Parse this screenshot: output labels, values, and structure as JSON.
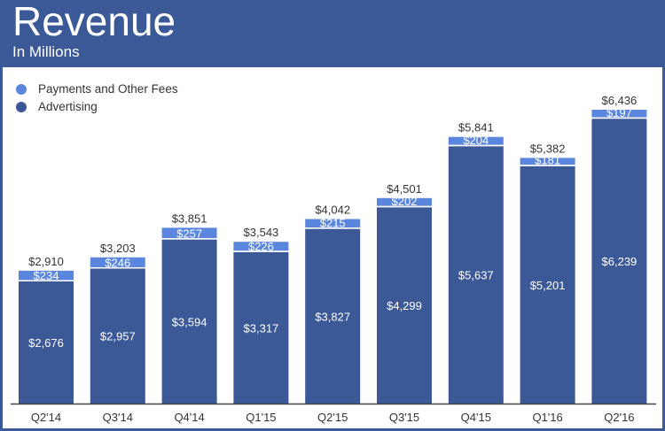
{
  "header": {
    "title": "Revenue",
    "subtitle": "In Millions"
  },
  "colors": {
    "header": "#3b5897",
    "advertising": "#3b5897",
    "payments": "#5b86dd",
    "text": "#333333"
  },
  "chart_data": {
    "type": "bar",
    "stacked": true,
    "title": "Revenue",
    "subtitle": "In Millions",
    "categories": [
      "Q2'14",
      "Q3'14",
      "Q4'14",
      "Q1'15",
      "Q2'15",
      "Q3'15",
      "Q4'15",
      "Q1'16",
      "Q2'16"
    ],
    "series": [
      {
        "name": "Advertising",
        "values": [
          2676,
          2957,
          3594,
          3317,
          3827,
          4299,
          5637,
          5201,
          6239
        ],
        "labels": [
          "$2,676",
          "$2,957",
          "$3,594",
          "$3,317",
          "$3,827",
          "$4,299",
          "$5,637",
          "$5,201",
          "$6,239"
        ]
      },
      {
        "name": "Payments and Other Fees",
        "values": [
          234,
          246,
          257,
          226,
          215,
          202,
          204,
          181,
          197
        ],
        "labels": [
          "$234",
          "$246",
          "$257",
          "$226",
          "$215",
          "$202",
          "$204",
          "$181",
          "$197"
        ]
      }
    ],
    "totals": [
      2910,
      3203,
      3851,
      3543,
      4042,
      4501,
      5841,
      5382,
      6436
    ],
    "total_labels": [
      "$2,910",
      "$3,203",
      "$3,851",
      "$3,543",
      "$4,042",
      "$4,501",
      "$5,841",
      "$5,382",
      "$6,436"
    ],
    "legend": [
      "Payments and Other Fees",
      "Advertising"
    ],
    "legend_position": "top-left",
    "grid": false,
    "ylim": [
      0,
      6436
    ]
  }
}
